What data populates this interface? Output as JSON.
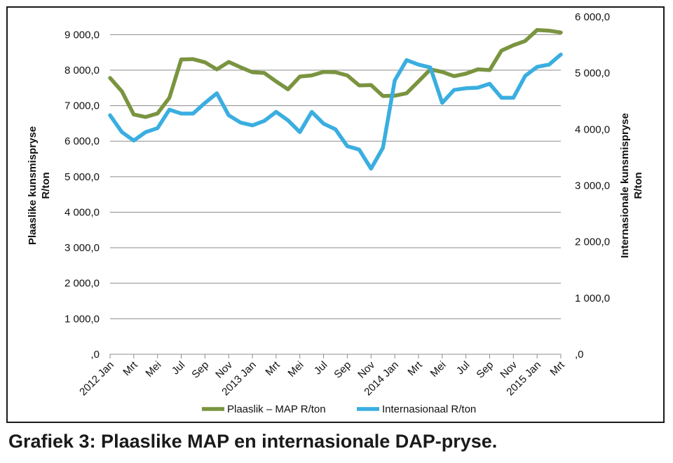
{
  "caption": "Grafiek 3: Plaaslike MAP en internasionale DAP-pryse.",
  "chart_data": {
    "type": "line",
    "x": [
      "2012 Jan",
      "Feb",
      "Mrt",
      "Apr",
      "Mei",
      "Jun",
      "Jul",
      "Aug",
      "Sep",
      "Okt",
      "Nov",
      "Des",
      "2013 Jan",
      "Feb",
      "Mrt",
      "Apr",
      "Mei",
      "Jun",
      "Jul",
      "Aug",
      "Sep",
      "Okt",
      "Nov",
      "Des",
      "2014 Jan",
      "Feb",
      "Mrt",
      "Apr",
      "Mei",
      "Jun",
      "Jul",
      "Aug",
      "Sep",
      "Okt",
      "Nov",
      "Des",
      "2015 Jan",
      "Feb",
      "Mrt"
    ],
    "x_tick_labels": [
      "2012 Jan",
      "Mrt",
      "Mei",
      "Jul",
      "Sep",
      "Nov",
      "2013 Jan",
      "Mrt",
      "Mei",
      "Jul",
      "Sep",
      "Nov",
      "2014 Jan",
      "Mrt",
      "Mei",
      "Jul",
      "Sep",
      "Nov",
      "2015 Jan",
      "Mrt"
    ],
    "y_left": {
      "label_line1": "Plaaslike kunsmispryse",
      "label_line2": "R/ton",
      "range": [
        0,
        9500
      ],
      "ticks": [
        0,
        1000,
        2000,
        3000,
        4000,
        5000,
        6000,
        7000,
        8000,
        9000
      ],
      "tick_labels": [
        ",0",
        "1 000,0",
        "2 000,0",
        "3 000,0",
        "4 000,0",
        "5 000,0",
        "6 000,0",
        "7 000,0",
        "8 000,0",
        "9 000,0"
      ]
    },
    "y_right": {
      "label_line1": "Internasionale kunsmispryse",
      "label_line2": "R/ton",
      "range": [
        0,
        6000
      ],
      "ticks": [
        0,
        1000,
        2000,
        3000,
        4000,
        5000,
        6000
      ],
      "tick_labels": [
        ",0",
        "1 000,0",
        "2 000,0",
        "3 000,0",
        "4 000,0",
        "5 000,0",
        "6 000,0"
      ]
    },
    "grid": "horizontal",
    "legend": "bottom",
    "series": [
      {
        "name": "Plaaslik – MAP R/ton",
        "axis": "left",
        "color": "#7a9440",
        "values": [
          7780,
          7400,
          6750,
          6680,
          6780,
          7220,
          8300,
          8310,
          8220,
          8020,
          8230,
          8080,
          7940,
          7920,
          7680,
          7460,
          7820,
          7850,
          7950,
          7940,
          7850,
          7570,
          7580,
          7270,
          7280,
          7350,
          7680,
          8020,
          7950,
          7830,
          7900,
          8020,
          8000,
          8550,
          8700,
          8820,
          9130,
          9110,
          9060
        ]
      },
      {
        "name": "Internasionaal R/ton",
        "axis": "right",
        "color": "#3aaee0",
        "values": [
          4250,
          3950,
          3800,
          3950,
          4020,
          4350,
          4280,
          4280,
          4470,
          4640,
          4250,
          4120,
          4070,
          4150,
          4310,
          4160,
          3950,
          4310,
          4100,
          4000,
          3700,
          3640,
          3300,
          3670,
          4870,
          5230,
          5150,
          5100,
          4470,
          4700,
          4730,
          4740,
          4810,
          4560,
          4560,
          4950,
          5110,
          5150,
          5330
        ]
      }
    ]
  }
}
